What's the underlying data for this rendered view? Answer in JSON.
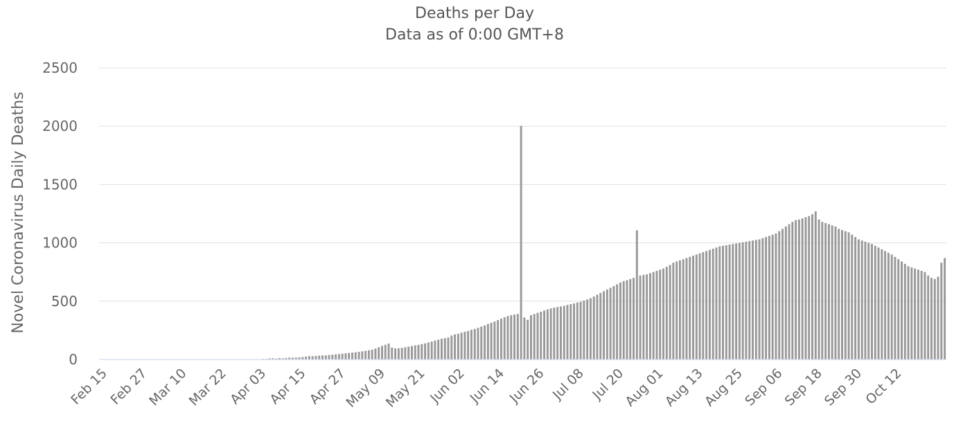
{
  "chart_data": {
    "type": "bar",
    "title": "Deaths per Day",
    "subtitle": "Data as of 0:00 GMT+8",
    "ylabel": "Novel Coronavirus Daily Deaths",
    "ylim": [
      0,
      2500
    ],
    "yticks": [
      "0",
      "500",
      "1000",
      "1500",
      "2000",
      "2500"
    ],
    "xticks": [
      "Feb 15",
      "Feb 27",
      "Mar 10",
      "Mar 22",
      "Apr 03",
      "Apr 15",
      "Apr 27",
      "May 09",
      "May 21",
      "Jun 02",
      "Jun 14",
      "Jun 26",
      "Jul 08",
      "Jul 20",
      "Aug 01",
      "Aug 13",
      "Aug 25",
      "Sep 06",
      "Sep 18",
      "Sep 30",
      "Oct 12"
    ],
    "start_date": "Feb 15",
    "grid": true,
    "bar_color": "#999999",
    "values": [
      0,
      0,
      0,
      0,
      0,
      0,
      0,
      0,
      0,
      0,
      0,
      0,
      0,
      0,
      0,
      0,
      0,
      0,
      0,
      0,
      0,
      0,
      0,
      0,
      0,
      0,
      0,
      0,
      0,
      0,
      0,
      0,
      0,
      0,
      0,
      0,
      0,
      0,
      0,
      0,
      0,
      0,
      0,
      0,
      0,
      0,
      1,
      1,
      2,
      5,
      6,
      9,
      10,
      8,
      12,
      10,
      13,
      16,
      15,
      17,
      18,
      21,
      25,
      29,
      28,
      31,
      33,
      35,
      35,
      38,
      41,
      44,
      47,
      50,
      53,
      56,
      59,
      62,
      66,
      70,
      74,
      79,
      84,
      94,
      105,
      116,
      126,
      136,
      102,
      95,
      96,
      100,
      105,
      110,
      115,
      121,
      126,
      132,
      138,
      146,
      154,
      162,
      170,
      178,
      183,
      188,
      205,
      215,
      220,
      230,
      238,
      245,
      255,
      262,
      272,
      282,
      292,
      305,
      315,
      325,
      338,
      350,
      362,
      372,
      380,
      385,
      390,
      2003,
      360,
      340,
      380,
      390,
      400,
      410,
      420,
      430,
      438,
      445,
      450,
      455,
      460,
      468,
      475,
      480,
      488,
      495,
      505,
      515,
      525,
      540,
      555,
      570,
      585,
      600,
      615,
      630,
      645,
      660,
      672,
      680,
      690,
      700,
      1108,
      720,
      725,
      730,
      740,
      750,
      760,
      770,
      780,
      795,
      810,
      830,
      840,
      850,
      860,
      870,
      880,
      890,
      900,
      910,
      920,
      930,
      940,
      950,
      960,
      970,
      975,
      980,
      985,
      990,
      995,
      1000,
      1005,
      1010,
      1015,
      1020,
      1025,
      1030,
      1040,
      1050,
      1060,
      1070,
      1080,
      1100,
      1120,
      1140,
      1160,
      1180,
      1195,
      1200,
      1210,
      1220,
      1230,
      1245,
      1270,
      1200,
      1180,
      1170,
      1160,
      1150,
      1140,
      1120,
      1110,
      1100,
      1090,
      1070,
      1050,
      1030,
      1020,
      1010,
      1000,
      990,
      975,
      960,
      945,
      930,
      915,
      900,
      880,
      860,
      840,
      820,
      800,
      790,
      780,
      770,
      760,
      750,
      720,
      700,
      690,
      710,
      830,
      870
    ]
  }
}
